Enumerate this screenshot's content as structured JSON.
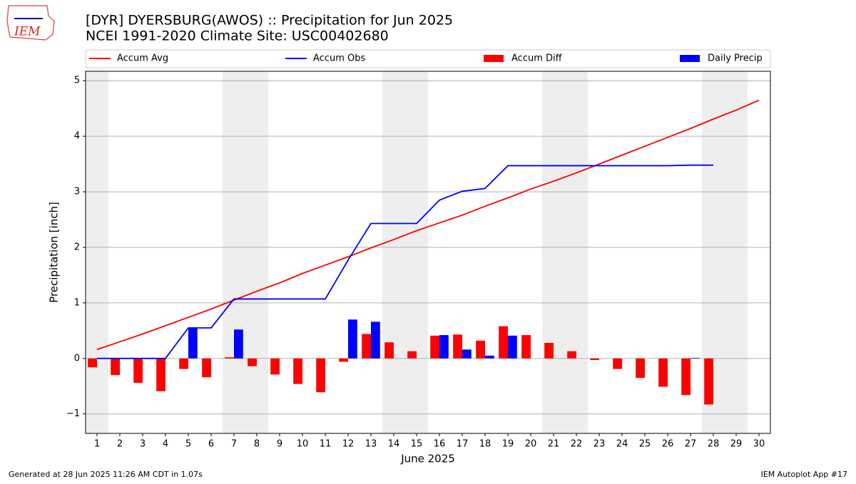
{
  "chart_data": {
    "type": "combo",
    "title": "[DYR] DYERSBURG(AWOS) :: Precipitation for Jun 2025",
    "subtitle": "NCEI 1991-2020 Climate Site: USC00402680",
    "logo_text": "IEM",
    "y_label": "Precipitation [inch]",
    "x_label": "June 2025",
    "footer_left": "Generated at 28 Jun 2025 11:26 AM CDT in 1.07s",
    "footer_right": "IEM Autoplot App #17",
    "x": [
      1,
      2,
      3,
      4,
      5,
      6,
      7,
      8,
      9,
      10,
      11,
      12,
      13,
      14,
      15,
      16,
      17,
      18,
      19,
      20,
      21,
      22,
      23,
      24,
      25,
      26,
      27,
      28,
      29,
      30
    ],
    "xlim": [
      0.5,
      30.5
    ],
    "xticks": [
      1,
      2,
      3,
      4,
      5,
      6,
      7,
      8,
      9,
      10,
      11,
      12,
      13,
      14,
      15,
      16,
      17,
      18,
      19,
      20,
      21,
      22,
      23,
      24,
      25,
      26,
      27,
      28,
      29,
      30
    ],
    "ylim": [
      -1.35,
      5.17
    ],
    "yticks": [
      {
        "value": -1,
        "label": "−1"
      },
      0,
      1,
      2,
      3,
      4,
      5
    ],
    "grid": true,
    "shaded_days": [
      1,
      7,
      8,
      14,
      15,
      21,
      22,
      28,
      29
    ],
    "series": [
      {
        "name": "Accum Avg",
        "kind": "line",
        "color": "#ff0000",
        "values": [
          0.16,
          0.3,
          0.44,
          0.59,
          0.74,
          0.89,
          1.05,
          1.21,
          1.36,
          1.53,
          1.68,
          1.83,
          1.99,
          2.14,
          2.3,
          2.44,
          2.58,
          2.74,
          2.89,
          3.05,
          3.19,
          3.34,
          3.5,
          3.66,
          3.82,
          3.98,
          4.14,
          4.31,
          4.47,
          4.65
        ]
      },
      {
        "name": "Accum Obs",
        "kind": "line",
        "color": "#0000ff",
        "values": [
          0,
          0,
          0,
          0,
          0.55,
          0.55,
          1.07,
          1.07,
          1.07,
          1.07,
          1.07,
          1.77,
          2.43,
          2.43,
          2.43,
          2.85,
          3.01,
          3.06,
          3.47,
          3.47,
          3.47,
          3.47,
          3.47,
          3.47,
          3.47,
          3.47,
          3.48,
          3.48,
          null,
          null
        ]
      },
      {
        "name": "Accum Diff",
        "kind": "bar_left",
        "color": "#ff0000",
        "values": [
          -0.16,
          -0.3,
          -0.44,
          -0.59,
          -0.19,
          -0.34,
          0.02,
          -0.14,
          -0.29,
          -0.46,
          -0.61,
          -0.06,
          0.44,
          0.29,
          0.13,
          0.41,
          0.43,
          0.32,
          0.58,
          0.42,
          0.28,
          0.13,
          -0.03,
          -0.19,
          -0.35,
          -0.51,
          -0.66,
          -0.83,
          null,
          null
        ]
      },
      {
        "name": "Daily Precip",
        "kind": "bar_right",
        "color": "#0000ff",
        "values": [
          0,
          0,
          0,
          0,
          0.55,
          0,
          0.52,
          0,
          0,
          0,
          0,
          0.7,
          0.66,
          0,
          0,
          0.42,
          0.16,
          0.05,
          0.41,
          0,
          0,
          0,
          0,
          0,
          0,
          0,
          0.01,
          0,
          null,
          null
        ]
      }
    ]
  }
}
